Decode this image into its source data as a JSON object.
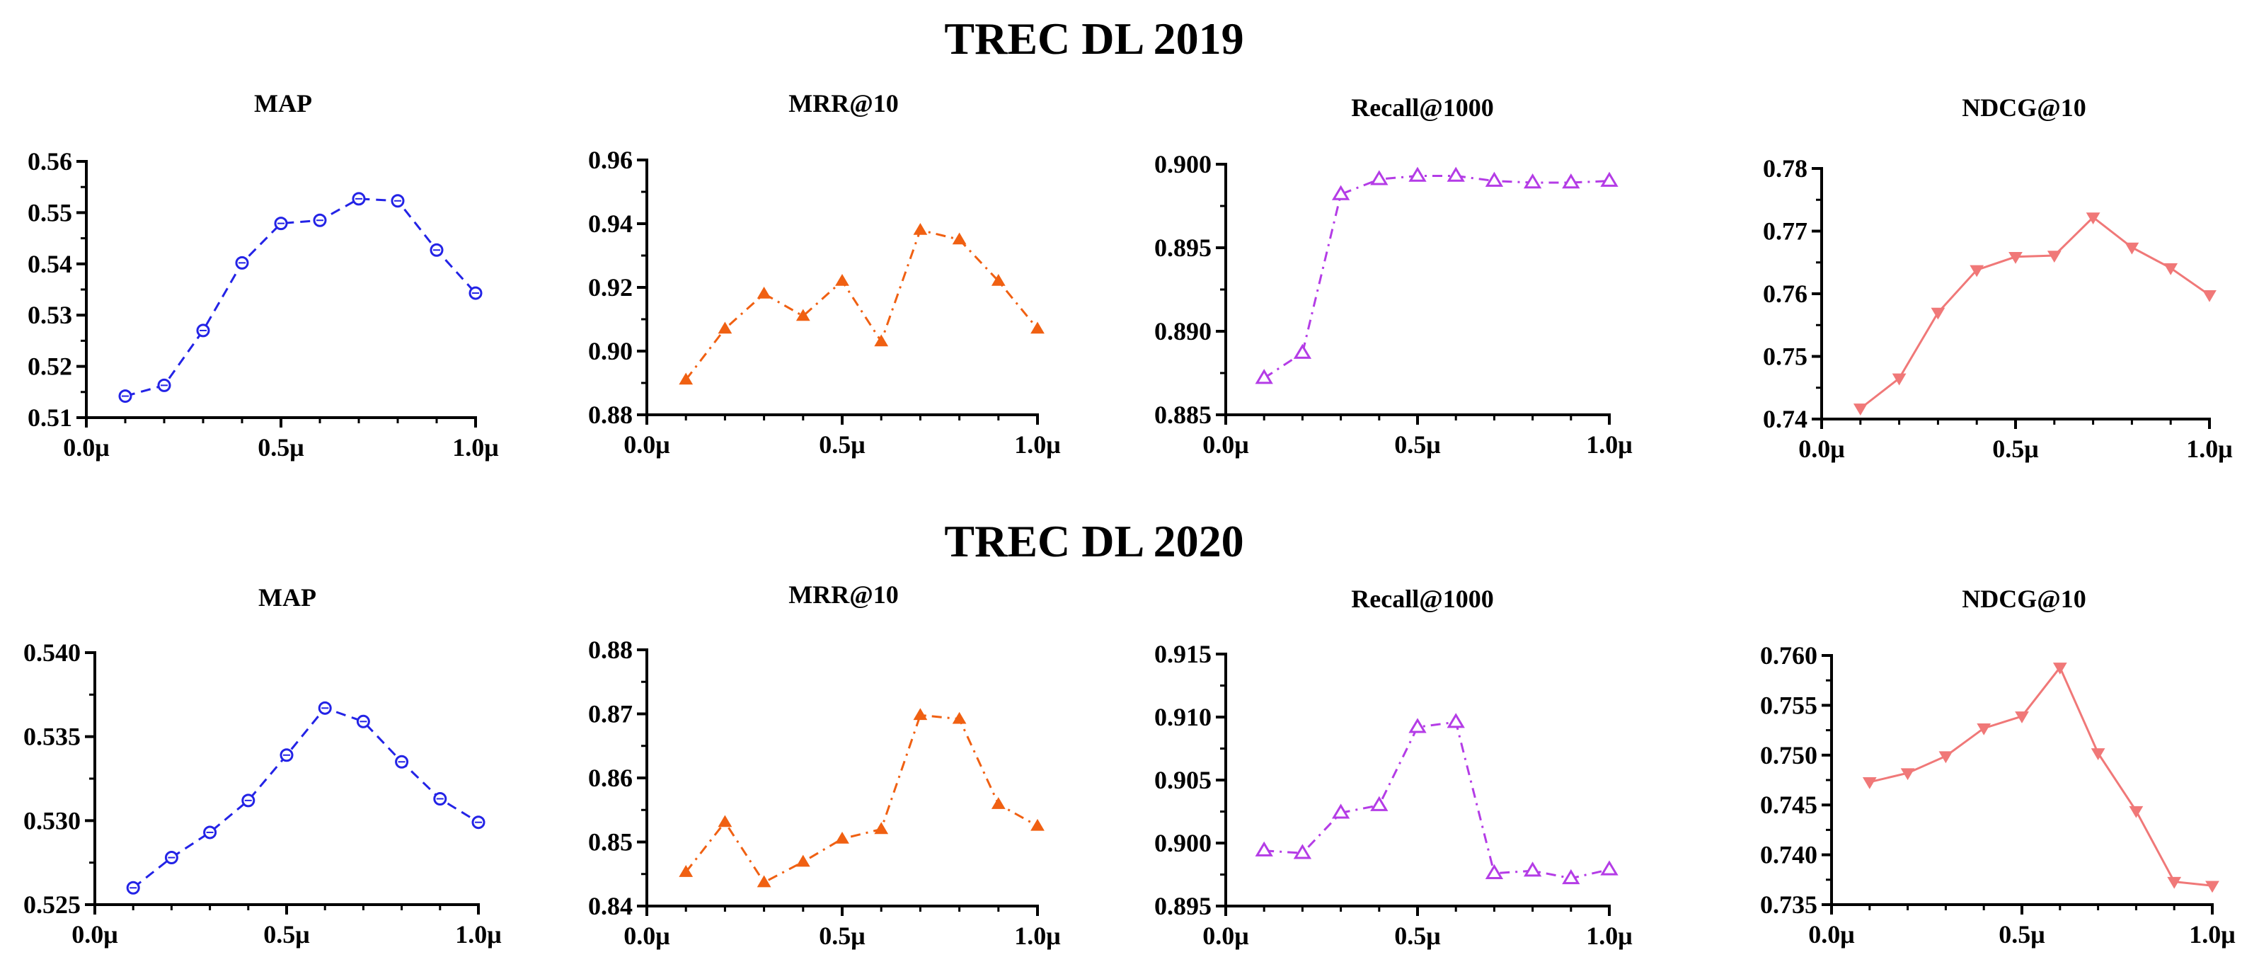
{
  "groups": [
    {
      "title": "TREC DL 2019"
    },
    {
      "title": "TREC DL 2020"
    }
  ],
  "chart_data": [
    {
      "type": "line",
      "group": "TREC DL 2019",
      "title": "MAP",
      "color": "#2323e6",
      "marker": "circle",
      "dash": "dashed",
      "x": [
        0.1,
        0.2,
        0.3,
        0.4,
        0.5,
        0.6,
        0.7,
        0.8,
        0.9,
        1.0
      ],
      "values": [
        0.5142,
        0.5163,
        0.527,
        0.5402,
        0.5479,
        0.5485,
        0.5527,
        0.5523,
        0.5427,
        0.5343
      ],
      "xlim": [
        0,
        1.0
      ],
      "xticks": [
        "0.0μ",
        "0.5μ",
        "1.0μ"
      ],
      "ylim": [
        0.51,
        0.56
      ],
      "yticks": [
        "0.51",
        "0.52",
        "0.53",
        "0.54",
        "0.55",
        "0.56"
      ]
    },
    {
      "type": "line",
      "group": "TREC DL 2019",
      "title": "MRR@10",
      "color": "#f06012",
      "marker": "triangle",
      "dash": "dashdot",
      "x": [
        0.1,
        0.2,
        0.3,
        0.4,
        0.5,
        0.6,
        0.7,
        0.8,
        0.9,
        1.0
      ],
      "values": [
        0.891,
        0.907,
        0.918,
        0.911,
        0.922,
        0.903,
        0.938,
        0.935,
        0.922,
        0.907
      ],
      "xlim": [
        0,
        1.0
      ],
      "xticks": [
        "0.0μ",
        "0.5μ",
        "1.0μ"
      ],
      "ylim": [
        0.88,
        0.96
      ],
      "yticks": [
        "0.88",
        "0.90",
        "0.92",
        "0.94",
        "0.96"
      ]
    },
    {
      "type": "line",
      "group": "TREC DL 2019",
      "title": "Recall@1000",
      "color": "#b43ce6",
      "marker": "triangle-open",
      "dash": "dashdot",
      "x": [
        0.1,
        0.2,
        0.3,
        0.4,
        0.5,
        0.6,
        0.7,
        0.8,
        0.9,
        1.0
      ],
      "values": [
        0.8872,
        0.8887,
        0.8982,
        0.8991,
        0.8993,
        0.8993,
        0.899,
        0.8989,
        0.8989,
        0.899
      ],
      "xlim": [
        0,
        1.0
      ],
      "xticks": [
        "0.0μ",
        "0.5μ",
        "1.0μ"
      ],
      "ylim": [
        0.885,
        0.9
      ],
      "yticks": [
        "0.885",
        "0.890",
        "0.895",
        "0.900"
      ]
    },
    {
      "type": "line",
      "group": "TREC DL 2019",
      "title": "NDCG@10",
      "color": "#f07878",
      "marker": "triangle-down",
      "dash": "solid",
      "x": [
        0.1,
        0.2,
        0.3,
        0.4,
        0.5,
        0.6,
        0.7,
        0.8,
        0.9,
        1.0
      ],
      "values": [
        0.7417,
        0.7465,
        0.757,
        0.7638,
        0.7659,
        0.7661,
        0.7722,
        0.7674,
        0.7641,
        0.7598
      ],
      "xlim": [
        0,
        1.0
      ],
      "xticks": [
        "0.0μ",
        "0.5μ",
        "1.0μ"
      ],
      "ylim": [
        0.74,
        0.78
      ],
      "yticks": [
        "0.74",
        "0.75",
        "0.76",
        "0.77",
        "0.78"
      ]
    },
    {
      "type": "line",
      "group": "TREC DL 2020",
      "title": "MAP",
      "color": "#2323e6",
      "marker": "circle",
      "dash": "dashed",
      "x": [
        0.1,
        0.2,
        0.3,
        0.4,
        0.5,
        0.6,
        0.7,
        0.8,
        0.9,
        1.0
      ],
      "values": [
        0.526,
        0.5278,
        0.5293,
        0.5312,
        0.5339,
        0.5367,
        0.5359,
        0.5335,
        0.5313,
        0.5299
      ],
      "xlim": [
        0,
        1.0
      ],
      "xticks": [
        "0.0μ",
        "0.5μ",
        "1.0μ"
      ],
      "ylim": [
        0.525,
        0.54
      ],
      "yticks": [
        "0.525",
        "0.530",
        "0.535",
        "0.540"
      ]
    },
    {
      "type": "line",
      "group": "TREC DL 2020",
      "title": "MRR@10",
      "color": "#f06012",
      "marker": "triangle",
      "dash": "dashdot",
      "x": [
        0.1,
        0.2,
        0.3,
        0.4,
        0.5,
        0.6,
        0.7,
        0.8,
        0.9,
        1.0
      ],
      "values": [
        0.8453,
        0.8531,
        0.8437,
        0.8469,
        0.8505,
        0.852,
        0.8698,
        0.8692,
        0.8559,
        0.8525
      ],
      "xlim": [
        0,
        1.0
      ],
      "xticks": [
        "0.0μ",
        "0.5μ",
        "1.0μ"
      ],
      "ylim": [
        0.84,
        0.88
      ],
      "yticks": [
        "0.84",
        "0.85",
        "0.86",
        "0.87",
        "0.88"
      ]
    },
    {
      "type": "line",
      "group": "TREC DL 2020",
      "title": "Recall@1000",
      "color": "#b43ce6",
      "marker": "triangle-open",
      "dash": "dashdot",
      "x": [
        0.1,
        0.2,
        0.3,
        0.4,
        0.5,
        0.6,
        0.7,
        0.8,
        0.9,
        1.0
      ],
      "values": [
        0.8994,
        0.8992,
        0.9024,
        0.903,
        0.9092,
        0.9096,
        0.8976,
        0.8978,
        0.8972,
        0.8979
      ],
      "xlim": [
        0,
        1.0
      ],
      "xticks": [
        "0.0μ",
        "0.5μ",
        "1.0μ"
      ],
      "ylim": [
        0.895,
        0.915
      ],
      "yticks": [
        "0.895",
        "0.900",
        "0.905",
        "0.910",
        "0.915"
      ]
    },
    {
      "type": "line",
      "group": "TREC DL 2020",
      "title": "NDCG@10",
      "color": "#f07878",
      "marker": "triangle-down",
      "dash": "solid",
      "x": [
        0.1,
        0.2,
        0.3,
        0.4,
        0.5,
        0.6,
        0.7,
        0.8,
        0.9,
        1.0
      ],
      "values": [
        0.7473,
        0.7482,
        0.7499,
        0.7527,
        0.7539,
        0.7588,
        0.7502,
        0.7444,
        0.7373,
        0.7369
      ],
      "xlim": [
        0,
        1.0
      ],
      "xticks": [
        "0.0μ",
        "0.5μ",
        "1.0μ"
      ],
      "ylim": [
        0.735,
        0.76
      ],
      "yticks": [
        "0.735",
        "0.740",
        "0.745",
        "0.750",
        "0.755",
        "0.760"
      ]
    }
  ]
}
